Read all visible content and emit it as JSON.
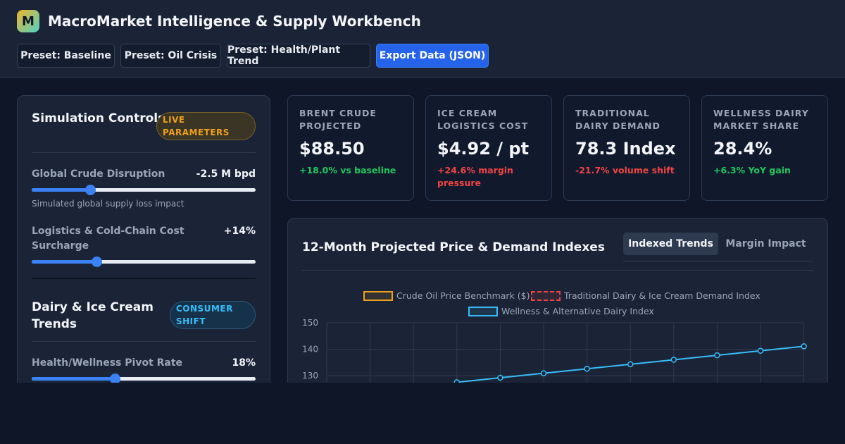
{
  "app": {
    "logo_letter": "M",
    "title": "MacroMarket Intelligence & Supply Workbench"
  },
  "toolbar": {
    "preset_baseline": "Preset: Baseline",
    "preset_oil_crisis": "Preset: Oil Crisis",
    "preset_health_trend": "Preset: Health/Plant Trend",
    "export": "Export Data (JSON)"
  },
  "controls": {
    "title": "Simulation Controls",
    "badge": "LIVE PARAMETERS",
    "crude": {
      "label": "Global Crude Disruption",
      "value": "-2.5 M bpd",
      "help": "Simulated global supply loss impact",
      "level": 0.26
    },
    "logistics": {
      "label": "Logistics & Cold-Chain Cost Surcharge",
      "value": "+14%",
      "level": 0.29
    }
  },
  "dairy": {
    "title": "Dairy & Ice Cream Trends",
    "badge": "CONSUMER SHIFT",
    "wellness": {
      "label": "Health/Wellness Pivot Rate",
      "value": "18%",
      "level": 0.37
    }
  },
  "kpis": [
    {
      "title": "BRENT CRUDE PROJECTED",
      "value": "$88.50",
      "delta": "+18.0% vs baseline",
      "tone": "pos"
    },
    {
      "title": "ICE CREAM LOGISTICS COST",
      "value": "$4.92 / pt",
      "delta": "+24.6% margin pressure",
      "tone": "neg"
    },
    {
      "title": "TRADITIONAL DAIRY DEMAND",
      "value": "78.3 Index",
      "delta": "-21.7% volume shift",
      "tone": "neg"
    },
    {
      "title": "WELLNESS DAIRY MARKET SHARE",
      "value": "28.4%",
      "delta": "+6.3% YoY gain",
      "tone": "pos"
    }
  ],
  "chart_panel": {
    "title": "12-Month Projected Price & Demand Indexes",
    "tab_active": "Indexed Trends",
    "tab_inactive": "Margin Impact"
  },
  "colors": {
    "accent": "#2563eb",
    "crude": "#f0a020",
    "dairy": "#ef4444",
    "wellness": "#38bdf8",
    "positive": "#22c55e",
    "negative": "#ef4444"
  },
  "chart_data": {
    "type": "line",
    "legend": [
      "Crude Oil Price Benchmark ($)",
      "Traditional Dairy & Ice Cream Demand Index",
      "Wellness & Alternative Dairy Index"
    ],
    "y_ticks": [
      150,
      140,
      130
    ],
    "ylim_visible": [
      130,
      150
    ],
    "grid": true,
    "series": [
      {
        "name": "Wellness & Alternative Dairy Index",
        "x": [
          4,
          5,
          6,
          7,
          8,
          9,
          10,
          11,
          12
        ],
        "values": [
          127.5,
          129.2,
          130.9,
          132.6,
          134.3,
          136.0,
          137.7,
          139.4,
          141.1
        ]
      }
    ]
  }
}
